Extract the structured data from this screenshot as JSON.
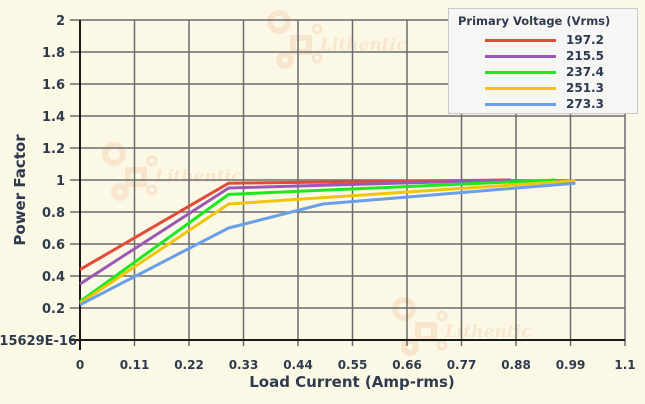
{
  "chart_data": {
    "type": "line",
    "title": "",
    "xlabel": "Load Current (Amp-rms)",
    "ylabel": "Power Factor",
    "xlim": [
      0,
      1.1
    ],
    "ylim": [
      0,
      2
    ],
    "x_ticks": [
      "0",
      "0.11",
      "0.22",
      "0.33",
      "0.44",
      "0.55",
      "0.66",
      "0.77",
      "0.88",
      "0.99",
      "1.1"
    ],
    "y_ticks": [
      "15629E-16",
      "0.2",
      "0.4",
      "0.6",
      "0.8",
      "1",
      "1.2",
      "1.4",
      "1.6",
      "1.8",
      "2"
    ],
    "grid": true,
    "legend_title": "Primary Voltage (Vrms)",
    "legend_position": "top-right",
    "watermark": "Lithentic",
    "series": [
      {
        "name": "197.2",
        "color": "#e04b3a",
        "points": [
          [
            0,
            0.44
          ],
          [
            0.3,
            0.98
          ],
          [
            0.87,
            1.0
          ]
        ]
      },
      {
        "name": "215.5",
        "color": "#9b59b6",
        "points": [
          [
            0,
            0.35
          ],
          [
            0.3,
            0.95
          ],
          [
            0.87,
            1.0
          ]
        ]
      },
      {
        "name": "237.4",
        "color": "#1ee81e",
        "points": [
          [
            0,
            0.24
          ],
          [
            0.3,
            0.91
          ],
          [
            0.96,
            1.0
          ]
        ]
      },
      {
        "name": "251.3",
        "color": "#f1c40f",
        "points": [
          [
            0,
            0.23
          ],
          [
            0.3,
            0.85
          ],
          [
            1.0,
            0.995
          ]
        ]
      },
      {
        "name": "273.3",
        "color": "#6a9fe8",
        "points": [
          [
            0,
            0.22
          ],
          [
            0.3,
            0.7
          ],
          [
            0.49,
            0.85
          ],
          [
            1.0,
            0.98
          ]
        ]
      }
    ]
  }
}
